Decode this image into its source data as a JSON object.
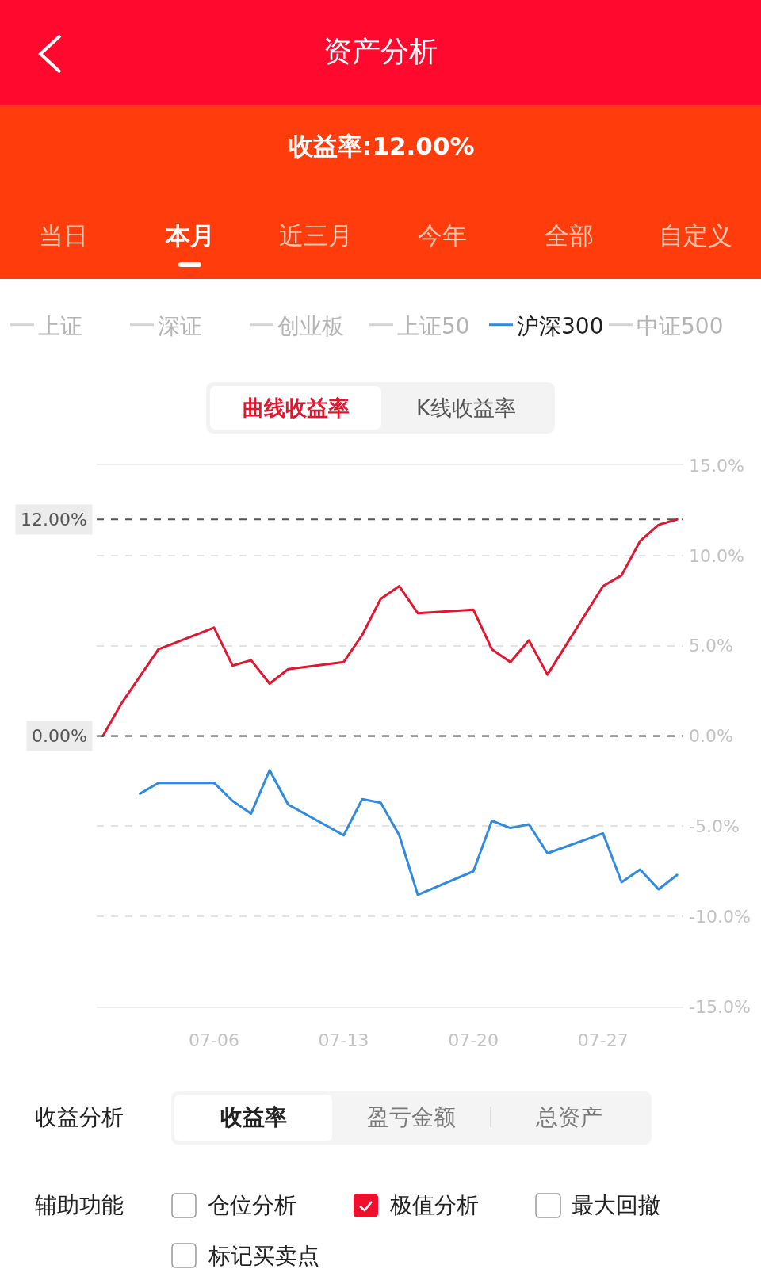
{
  "chart_data": {
    "type": "line",
    "title": "资产分析",
    "subtitle": "收益率:12.00%",
    "x": [
      "--06-30",
      "--07-01",
      "--07-02",
      "--07-03",
      "--07-06",
      "--07-07",
      "--07-08",
      "--07-09",
      "--07-10",
      "--07-13",
      "--07-14",
      "--07-15",
      "--07-16",
      "--07-17",
      "--07-20",
      "--07-21",
      "--07-22",
      "--07-23",
      "--07-24",
      "--07-27",
      "--07-28",
      "--07-29",
      "--07-30",
      "--07-31"
    ],
    "series": [
      {
        "color": "#e3162f",
        "values": [
          0,
          1.8,
          3.3,
          4.8,
          6.0,
          3.9,
          4.2,
          2.9,
          3.7,
          4.1,
          5.6,
          7.6,
          8.3,
          6.8,
          7.0,
          4.8,
          4.1,
          5.3,
          3.4,
          8.3,
          8.9,
          10.8,
          11.7,
          12
        ]
      },
      {
        "name": "上证",
        "color": "#d4d4d4",
        "values": [
          null,
          null,
          null,
          null,
          null,
          null,
          null,
          null,
          null,
          null,
          null,
          null,
          null,
          null,
          null,
          null,
          null,
          null,
          null,
          null,
          null,
          null,
          null,
          null
        ]
      },
      {
        "name": "深证",
        "color": "#d4d4d4",
        "values": [
          null,
          null,
          null,
          null,
          null,
          null,
          null,
          null,
          null,
          null,
          null,
          null,
          null,
          null,
          null,
          null,
          null,
          null,
          null,
          null,
          null,
          null,
          null,
          null
        ]
      },
      {
        "name": "创业板",
        "color": "#d4d4d4",
        "values": [
          null,
          null,
          null,
          null,
          null,
          null,
          null,
          null,
          null,
          null,
          null,
          null,
          null,
          null,
          null,
          null,
          null,
          null,
          null,
          null,
          null,
          null,
          null,
          null
        ]
      },
      {
        "name": "上证50",
        "color": "#d4d4d4",
        "values": [
          null,
          null,
          null,
          null,
          null,
          null,
          null,
          null,
          null,
          null,
          null,
          null,
          null,
          null,
          null,
          null,
          null,
          null,
          null,
          null,
          null,
          null,
          null,
          null
        ]
      },
      {
        "name": "沪深300",
        "color": "#2f8ae0",
        "values": [
          null,
          null,
          -3.2,
          -2.6,
          -2.6,
          -3.6,
          -4.3,
          -1.9,
          -3.8,
          -5.5,
          -3.5,
          -3.7,
          -5.5,
          -8.8,
          -7.5,
          -4.7,
          -5.1,
          -4.9,
          -6.5,
          -5.4,
          -8.1,
          -7.4,
          -8.5,
          -7.7
        ]
      },
      {
        "name": "中证500",
        "color": "#d4d4d4",
        "values": [
          null,
          null,
          null,
          null,
          null,
          null,
          null,
          null,
          null,
          null,
          null,
          null,
          null,
          null,
          null,
          null,
          null,
          null,
          null,
          null,
          null,
          null,
          null,
          null
        ]
      }
    ],
    "xlim": [
      "--06-29T16:00",
      "--07-31T08:00"
    ],
    "xticks": [
      {
        "value": "--07-06",
        "label": "07-06"
      },
      {
        "value": "--07-13",
        "label": "07-13"
      },
      {
        "value": "--07-20",
        "label": "07-20"
      },
      {
        "value": "--07-27",
        "label": "07-27"
      }
    ],
    "ylim": [
      -15,
      15
    ],
    "yticks": [
      {
        "value": 15,
        "label": "15.0%"
      },
      {
        "value": 10,
        "label": "10.0%"
      },
      {
        "value": 5,
        "label": "5.0%"
      },
      {
        "value": 0,
        "label": "0.0%"
      },
      {
        "value": -5,
        "label": "-5.0%"
      },
      {
        "value": -10,
        "label": "-10.0%"
      },
      {
        "value": -15,
        "label": "-15.0%"
      }
    ],
    "ref_lines": [
      {
        "axis": "y",
        "value": 12,
        "label": "12.00%",
        "color": "#555555",
        "line_style": "dashed"
      },
      {
        "axis": "y",
        "value": 0,
        "label": "0.00%",
        "color": "#555555",
        "line_style": "dashed"
      }
    ],
    "grid": "y",
    "legend": "top",
    "annotations": [
      "当日",
      "本月",
      "近三月",
      "今年",
      "全部",
      "自定义",
      "曲线收益率",
      "K线收益率",
      "收益分析",
      "收益率",
      "盈亏金额",
      "总资产",
      "辅助功能",
      "仓位分析",
      "极值分析",
      "最大回撤",
      "标记买卖点"
    ]
  }
}
